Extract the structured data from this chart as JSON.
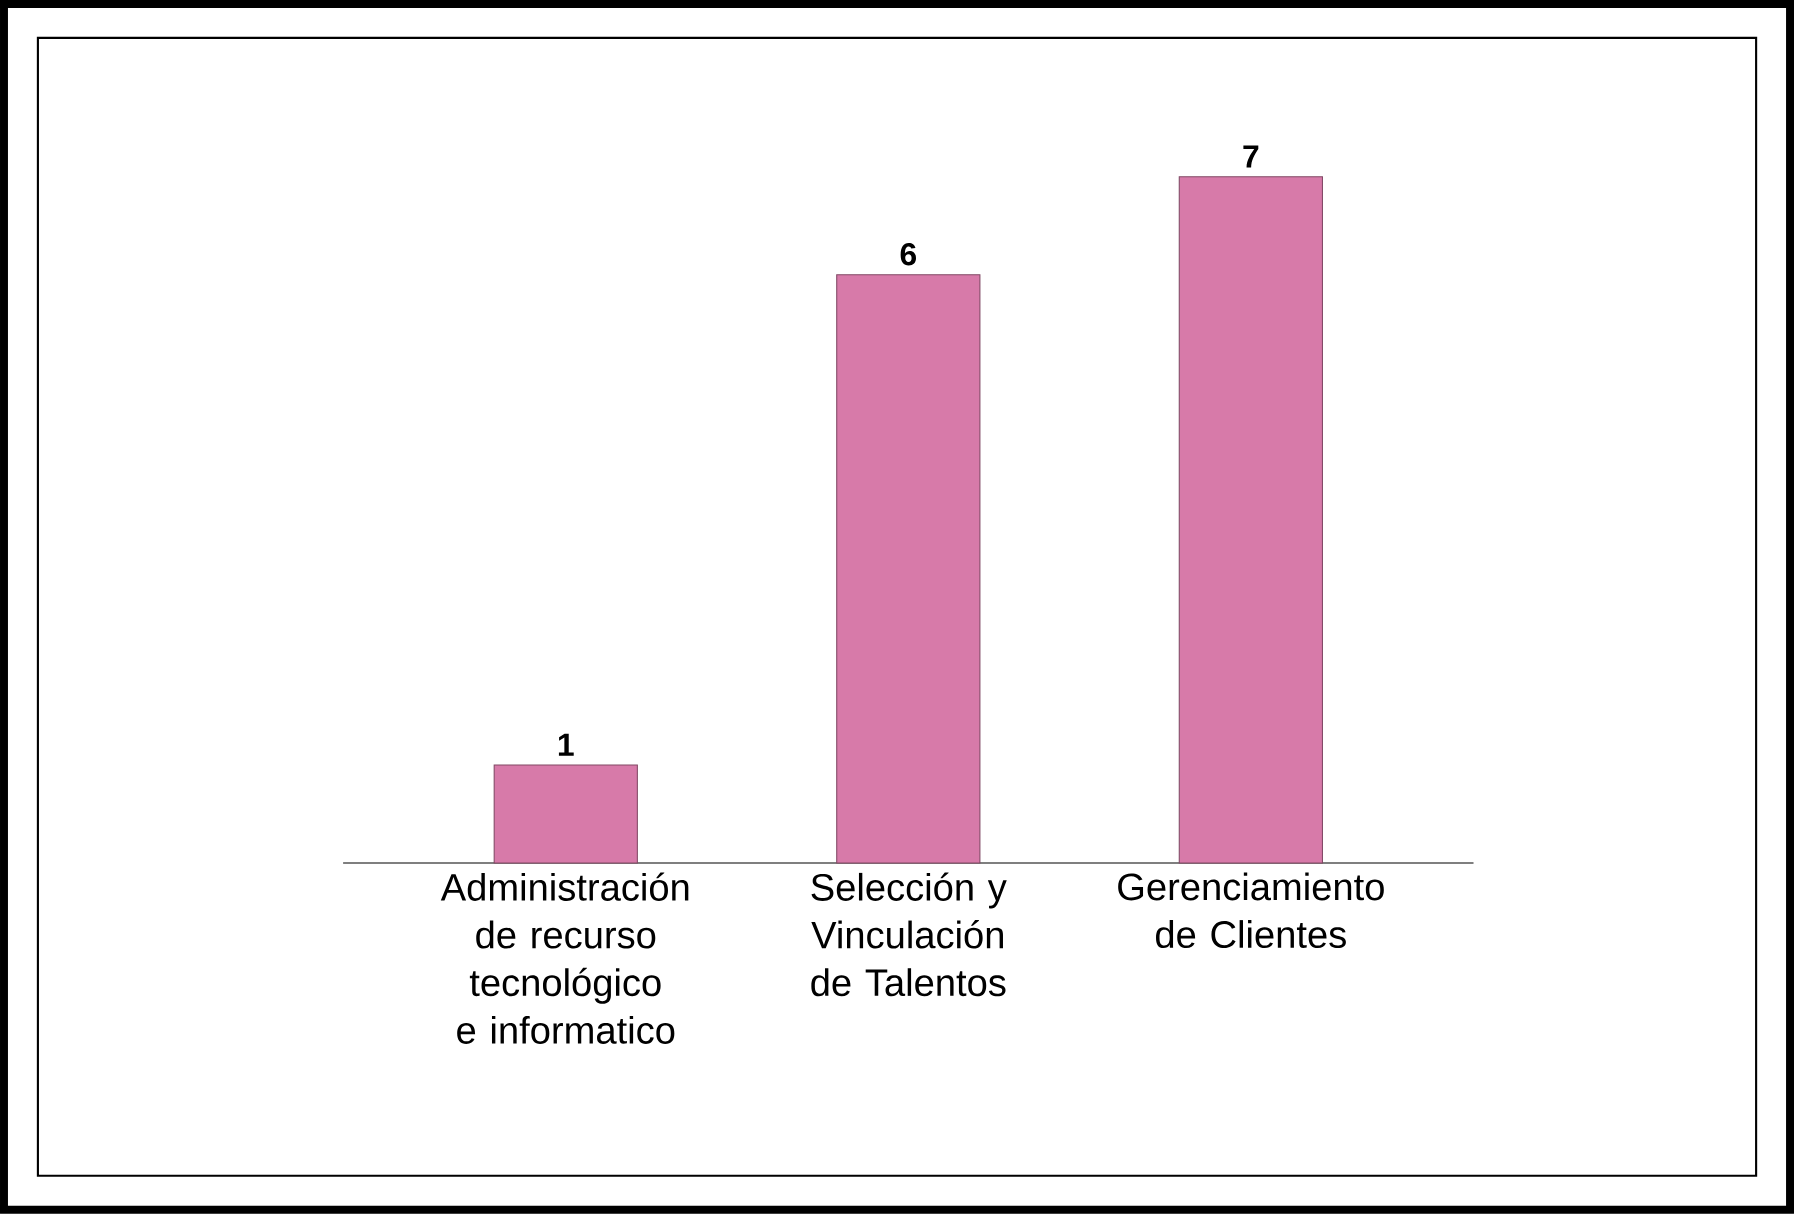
{
  "chart_data": {
    "type": "bar",
    "categories": [
      "Administración de recurso tecnológico e informatico",
      "Selección y Vinculación de Talentos",
      "Gerenciamiento de Clientes"
    ],
    "values": [
      1,
      6,
      7
    ],
    "color": "#d77aa9",
    "data_labels": true
  }
}
